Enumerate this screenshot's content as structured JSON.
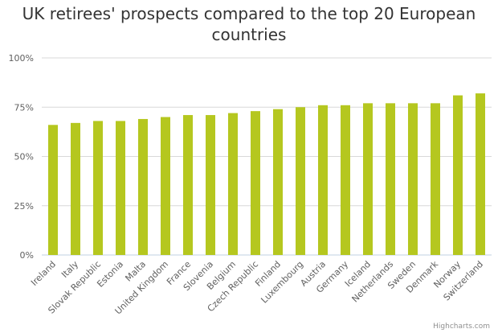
{
  "chart_data": {
    "type": "bar",
    "title": "UK retirees' prospects compared to the top 20 European countries",
    "title_lines": [
      "UK retirees' prospects compared to the top 20 European",
      "countries"
    ],
    "xlabel": "",
    "ylabel": "",
    "ylim": [
      0,
      100
    ],
    "yticks": [
      0,
      25,
      50,
      75,
      100
    ],
    "ytick_labels": [
      "0%",
      "25%",
      "50%",
      "75%",
      "100%"
    ],
    "grid": true,
    "bar_color": "#b5c71f",
    "categories": [
      "Ireland",
      "Italy",
      "Slovak Republic",
      "Estonia",
      "Malta",
      "United Kingdom",
      "France",
      "Slovenia",
      "Belgium",
      "Czech Republic",
      "Finland",
      "Luxembourg",
      "Austria",
      "Germany",
      "Iceland",
      "Netherlands",
      "Sweden",
      "Denmark",
      "Norway",
      "Switzerland"
    ],
    "values": [
      66,
      67,
      68,
      68,
      69,
      70,
      71,
      71,
      72,
      73,
      74,
      75,
      76,
      76,
      77,
      77,
      77,
      77,
      81,
      82
    ]
  },
  "credit": "Highcharts.com"
}
